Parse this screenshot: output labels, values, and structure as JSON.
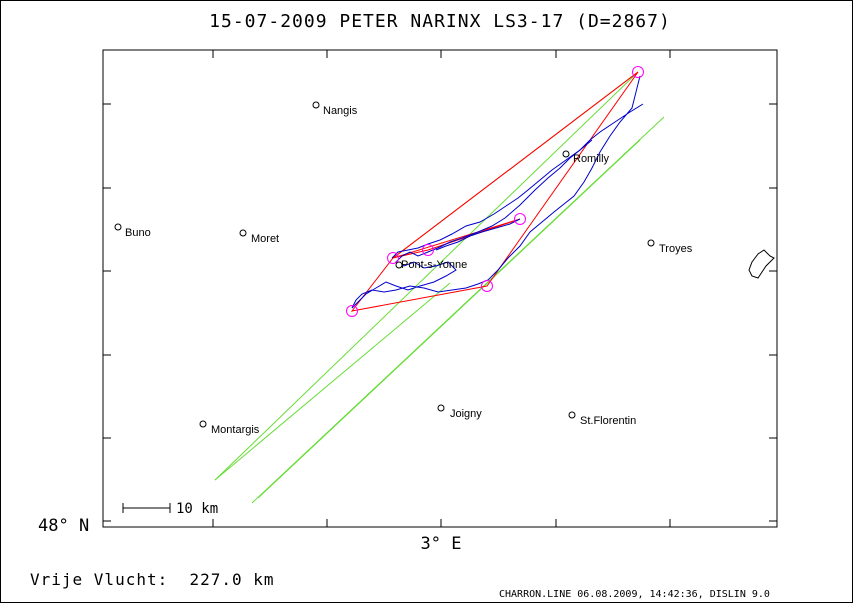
{
  "title": "15-07-2009   PETER NARINX   LS3-17 (D=2867)",
  "axes": {
    "lat_label": "48° N",
    "lon_label": "3° E"
  },
  "towns": [
    {
      "name": "Nangis"
    },
    {
      "name": "Buno"
    },
    {
      "name": "Moret"
    },
    {
      "name": "Romilly"
    },
    {
      "name": "Troyes"
    },
    {
      "name": "Pont-s-Yonne"
    },
    {
      "name": "Montargis"
    },
    {
      "name": "Joigny"
    },
    {
      "name": "St.Florentin"
    }
  ],
  "scale_bar": {
    "label": "10 km"
  },
  "distance": "Vrije Vlucht:  227.0 km",
  "footer": "CHARRON.LINE 06.08.2009, 14:42:36, DISLIN 9.0",
  "colors": {
    "track": "#0000cc",
    "task_lines": "#ff0000",
    "outer_line": "#cc6600",
    "sector_lines": "#66dd33",
    "turnpoint_circles": "#ff00ff"
  }
}
